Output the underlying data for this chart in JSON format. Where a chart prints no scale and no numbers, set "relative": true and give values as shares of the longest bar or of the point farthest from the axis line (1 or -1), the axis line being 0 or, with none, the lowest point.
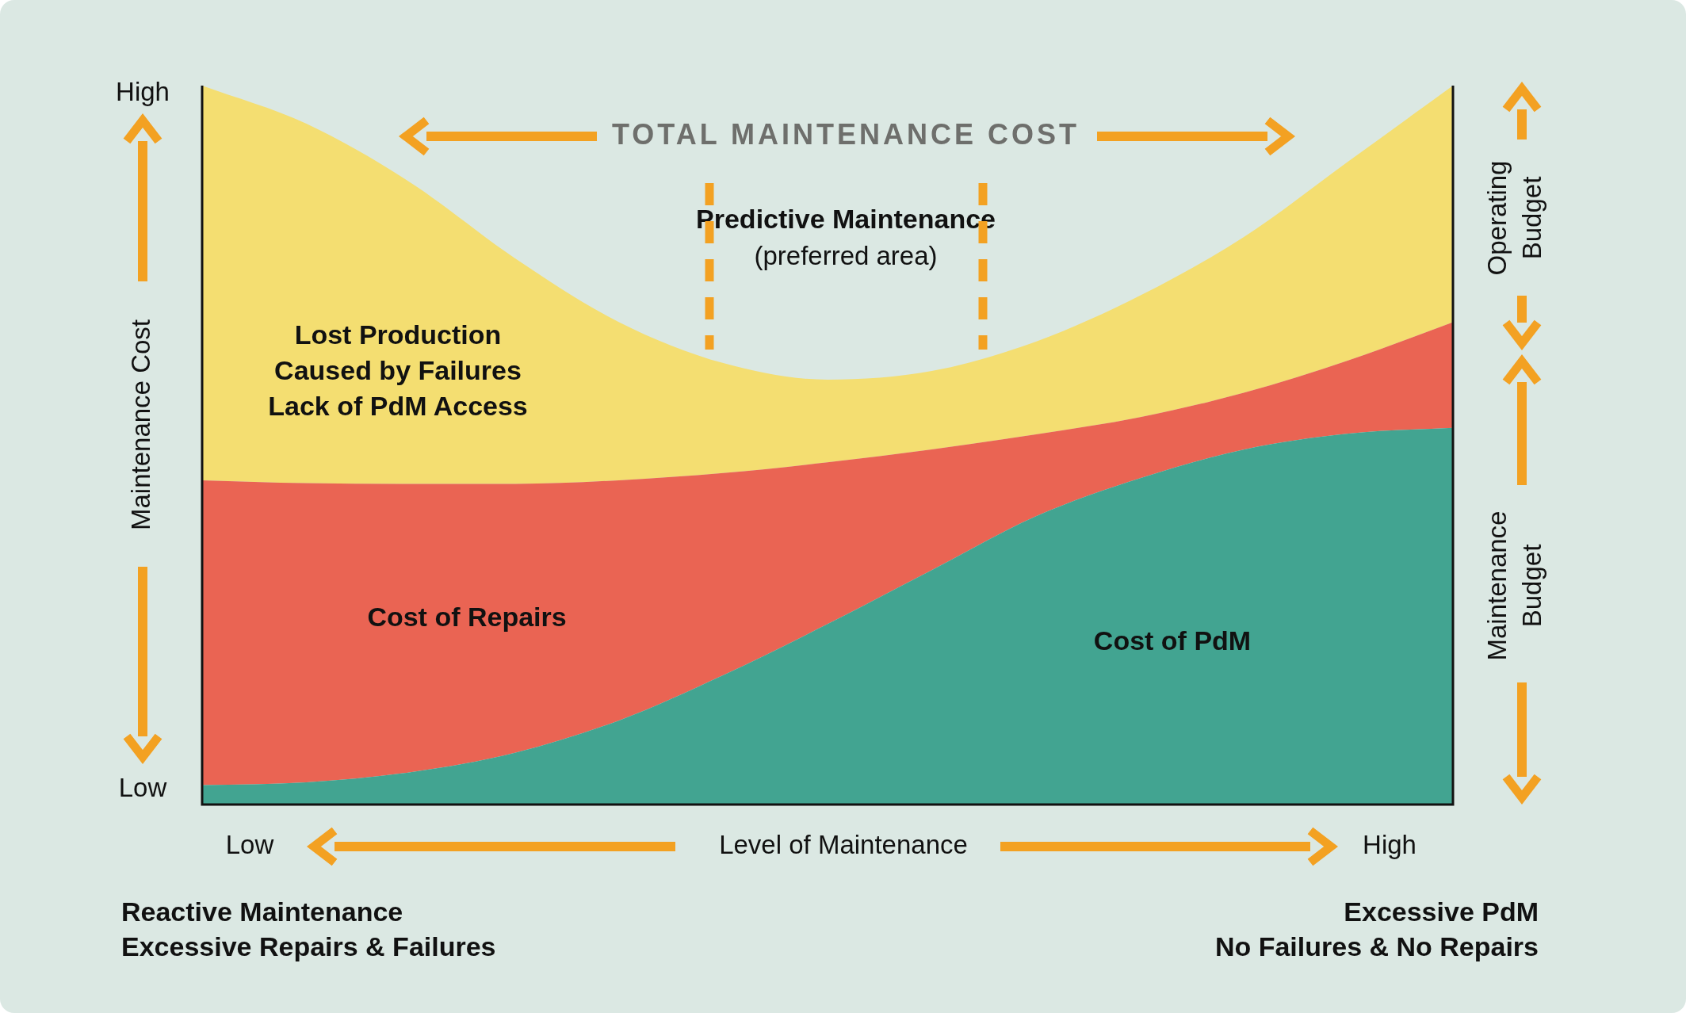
{
  "chart_data": {
    "type": "area",
    "title": "TOTAL MAINTENANCE COST",
    "xlabel": "Level of Maintenance",
    "ylabel": "Maintenance Cost",
    "relative": true,
    "stacked": true,
    "categories": [
      null,
      null,
      null,
      null,
      null,
      null,
      null,
      null,
      null,
      null,
      null,
      null,
      null
    ],
    "series": [
      {
        "name": "Cost of PdM",
        "color": "#42a491",
        "values": [
          0.027,
          0.031,
          0.045,
          0.072,
          0.117,
          0.18,
          0.251,
          0.326,
          0.401,
          0.454,
          0.494,
          0.516,
          0.524
        ]
      },
      {
        "name": "Cost of Repairs",
        "color": "#ea6453",
        "values": [
          0.424,
          0.416,
          0.401,
          0.374,
          0.334,
          0.281,
          0.225,
          0.168,
          0.114,
          0.085,
          0.079,
          0.102,
          0.147
        ]
      },
      {
        "name": "Lost Production\nCaused by Failures\nLack of PdM Access",
        "color": "#f4de71",
        "values": [
          0.549,
          0.5,
          0.419,
          0.314,
          0.22,
          0.153,
          0.115,
          0.109,
          0.129,
          0.169,
          0.217,
          0.277,
          0.329
        ]
      }
    ],
    "annotations": [
      "High",
      "Low",
      "Low",
      "High",
      "Predictive Maintenance\n(preferred area)",
      "Operating\nBudget",
      "Maintenance\nBudget",
      "Reactive Maintenance\nExcessive Repairs & Failures",
      "Excessive PdM\nNo Failures & No Repairs"
    ]
  }
}
